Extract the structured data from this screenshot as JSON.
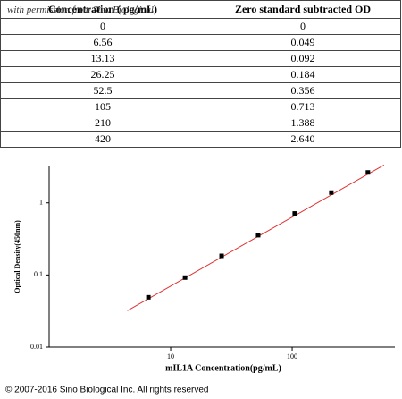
{
  "watermark": "with permission from Sino Biological",
  "table": {
    "header": [
      "Concentration ( pg/mL)",
      "Zero standard subtracted OD"
    ],
    "rows": [
      [
        "0",
        "0"
      ],
      [
        "6.56",
        "0.049"
      ],
      [
        "13.13",
        "0.092"
      ],
      [
        "26.25",
        "0.184"
      ],
      [
        "52.5",
        "0.356"
      ],
      [
        "105",
        "0.713"
      ],
      [
        "210",
        "1.388"
      ],
      [
        "420",
        "2.640"
      ]
    ]
  },
  "chart_data": {
    "type": "scatter",
    "x_label": "mIL1A  Concentration(pg/mL)",
    "y_label": "Optical Density(450nm)",
    "x": [
      6.56,
      13.13,
      26.25,
      52.5,
      105,
      210,
      420
    ],
    "values": [
      0.049,
      0.092,
      0.184,
      0.356,
      0.713,
      1.388,
      2.64
    ],
    "color": "#000000",
    "fit": {
      "x": [
        4.4,
        570
      ],
      "values": [
        0.032,
        3.35
      ],
      "color": "#e03030"
    },
    "x_log": true,
    "y_log": true,
    "xlim": [
      1,
      700
    ],
    "ylim": [
      0.01,
      3.2
    ],
    "xticks": [
      10,
      100
    ],
    "yticks": [
      0.01,
      0.1,
      1
    ]
  },
  "footer": "© 2007-2016 Sino Biological Inc. All rights reserved"
}
